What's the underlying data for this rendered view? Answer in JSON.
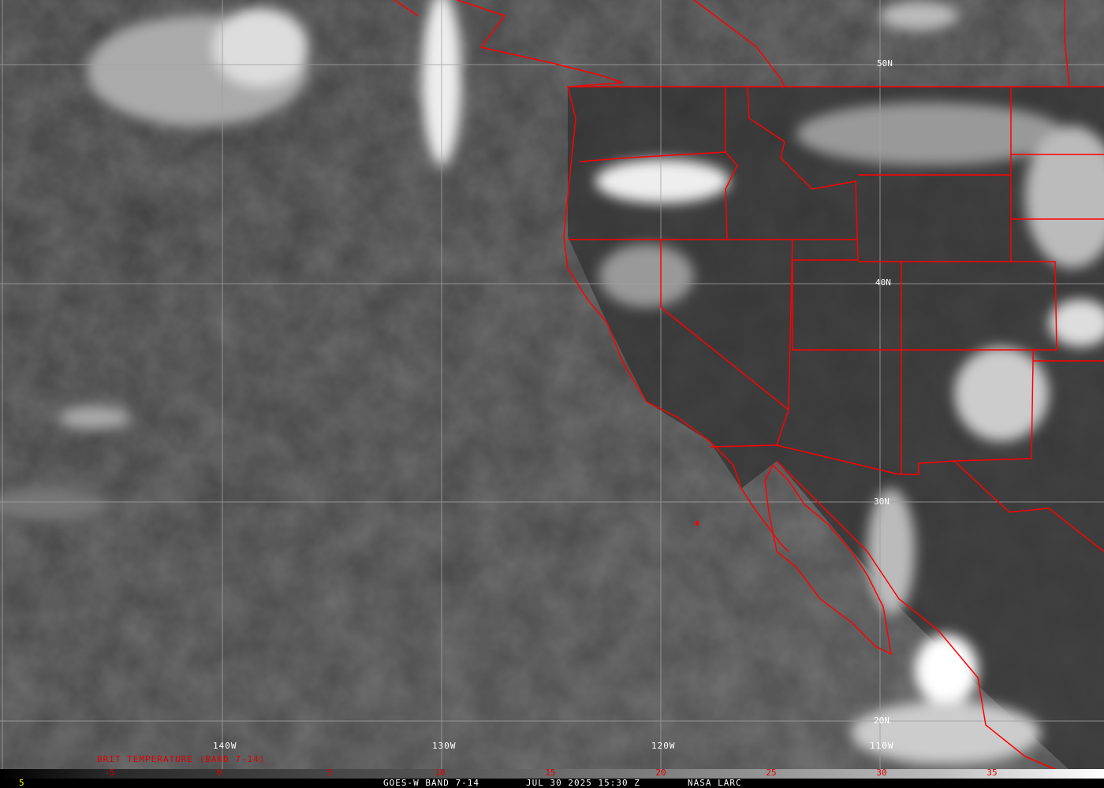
{
  "map": {
    "satellite_caption": "GOES-W BAND 7-14",
    "datetime": "JUL 30 2025 15:30 Z",
    "credit": "NASA LARC",
    "frame_number": "5",
    "latitude_labels": [
      "50N",
      "40N",
      "30N",
      "20N"
    ],
    "longitude_labels": [
      "140W",
      "130W",
      "120W",
      "110W"
    ],
    "border_color": "#ff0000",
    "grid_color": "#a0a0a0"
  },
  "legend": {
    "title": "BRIT TEMPERATURE (BAND 7-14)",
    "ticks": [
      "-5",
      "0",
      "5",
      "10",
      "15",
      "20",
      "25",
      "30",
      "35"
    ],
    "tick_color": "#e00000"
  }
}
